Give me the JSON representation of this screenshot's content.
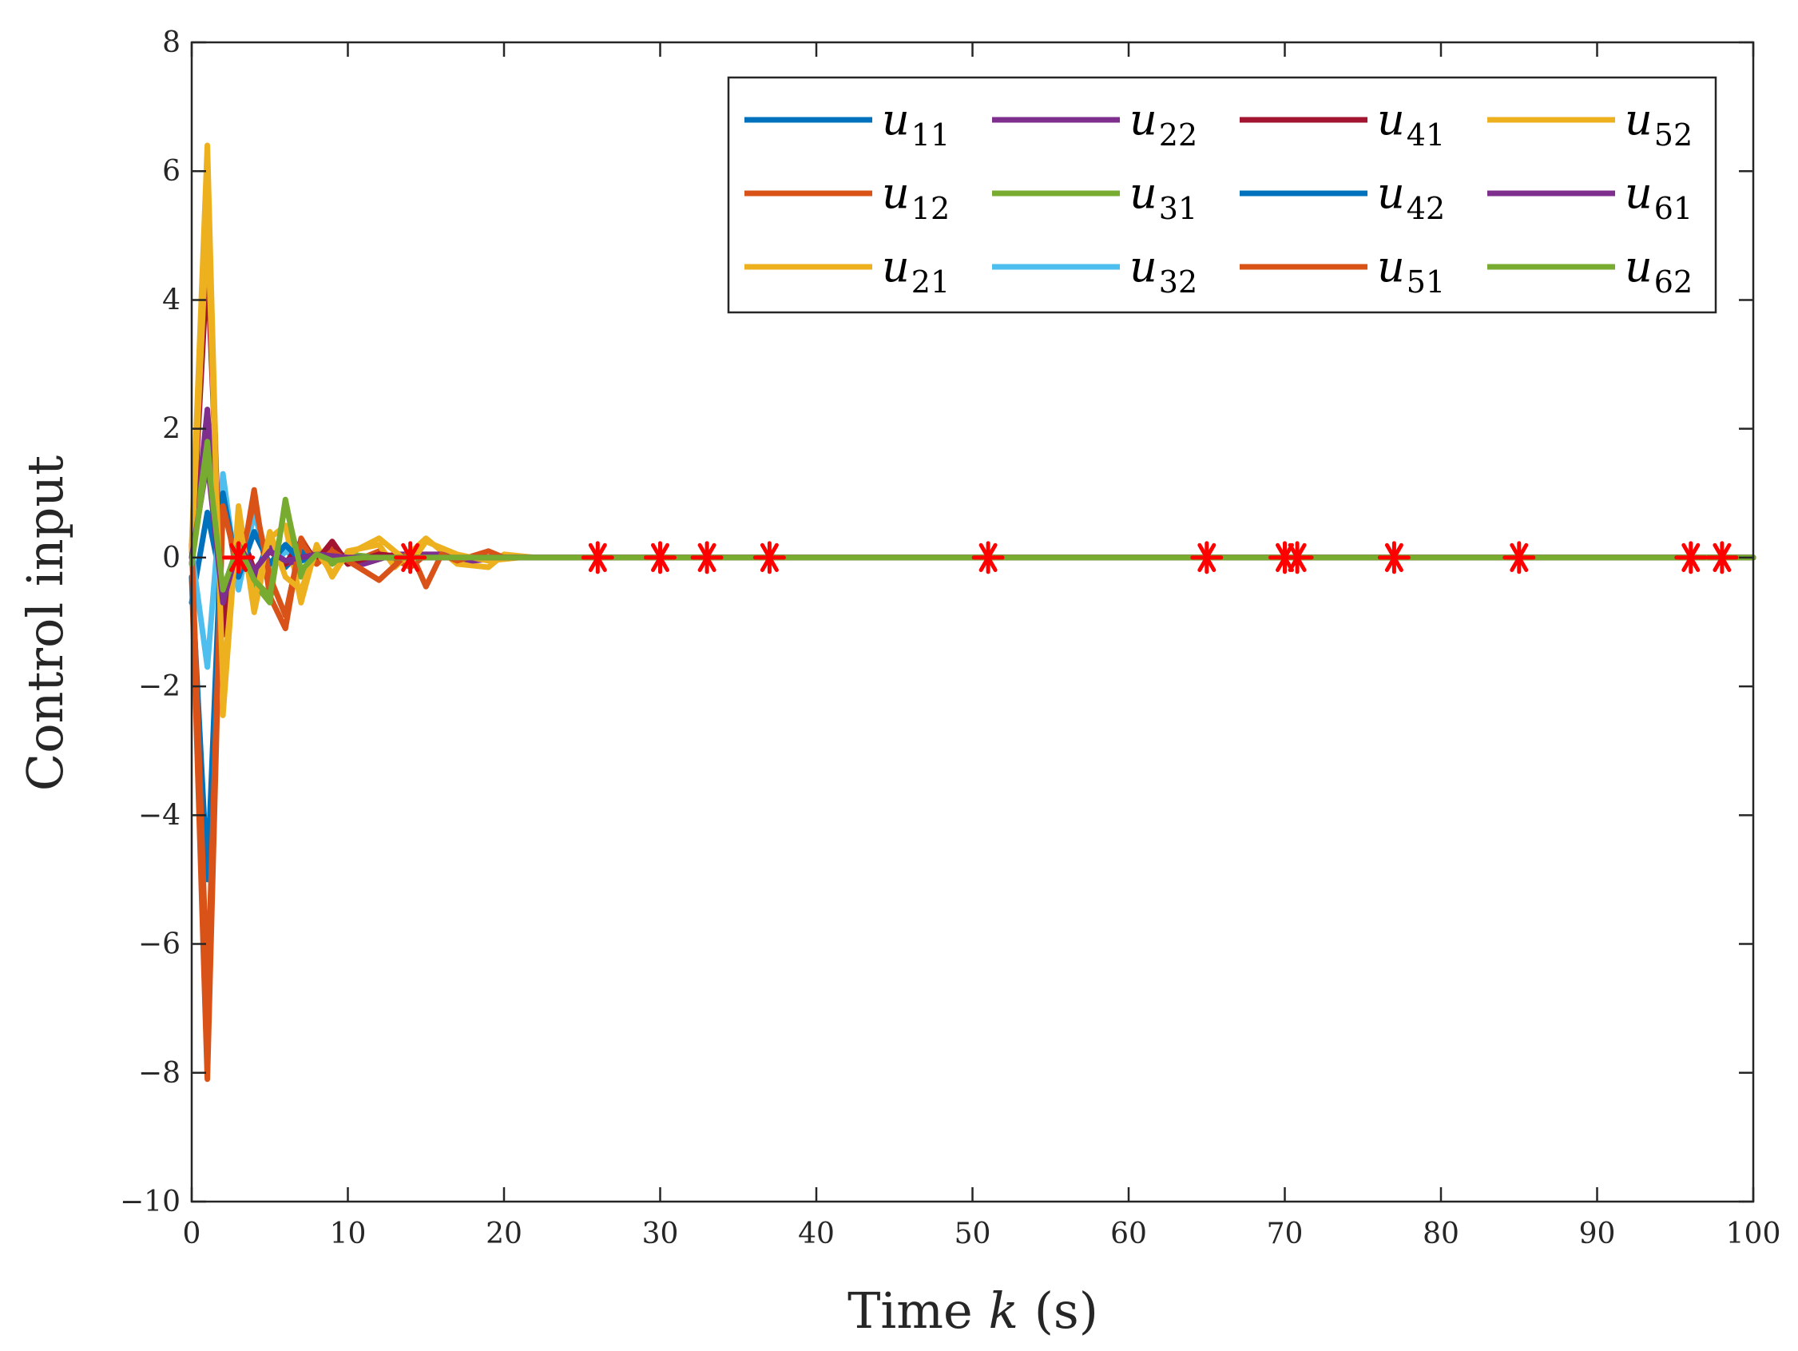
{
  "chart_data": {
    "type": "line",
    "xlabel": "Time k (s)",
    "xlabel_parts": {
      "prefix": "Time ",
      "var": "k",
      "suffix": " (s)"
    },
    "ylabel": "Control input",
    "xlim": [
      0,
      100
    ],
    "ylim": [
      -10,
      8
    ],
    "xticks": [
      0,
      10,
      20,
      30,
      40,
      50,
      60,
      70,
      80,
      90,
      100
    ],
    "yticks": [
      -10,
      -8,
      -6,
      -4,
      -2,
      0,
      2,
      4,
      6,
      8
    ],
    "legend_position": "top-right",
    "grid": false,
    "series": [
      {
        "name": "u11",
        "base": "u",
        "sub": "11",
        "color": "#0072BD",
        "points": [
          [
            0,
            -0.7
          ],
          [
            1,
            0.7
          ],
          [
            2,
            -0.5
          ],
          [
            3,
            0.2
          ],
          [
            4,
            -0.3
          ],
          [
            5,
            0.25
          ],
          [
            6,
            -0.15
          ],
          [
            7,
            0.1
          ],
          [
            8,
            -0.05
          ],
          [
            9,
            0.05
          ],
          [
            10,
            0
          ],
          [
            100,
            0
          ]
        ]
      },
      {
        "name": "u12",
        "base": "u",
        "sub": "12",
        "color": "#D95319",
        "points": [
          [
            0,
            -0.3
          ],
          [
            1,
            -8.1
          ],
          [
            2,
            1.0
          ],
          [
            3,
            -0.4
          ],
          [
            4,
            1.05
          ],
          [
            5,
            -0.6
          ],
          [
            6,
            -1.1
          ],
          [
            7,
            0.3
          ],
          [
            8,
            -0.1
          ],
          [
            9,
            0.2
          ],
          [
            10,
            -0.1
          ],
          [
            12,
            0.1
          ],
          [
            14,
            -0.15
          ],
          [
            15,
            0.05
          ],
          [
            18,
            0
          ],
          [
            100,
            0
          ]
        ]
      },
      {
        "name": "u21",
        "base": "u",
        "sub": "21",
        "color": "#EDB120",
        "points": [
          [
            0,
            0.2
          ],
          [
            1,
            6.4
          ],
          [
            2,
            -2.45
          ],
          [
            3,
            0.8
          ],
          [
            4,
            -0.85
          ],
          [
            5,
            0.3
          ],
          [
            6,
            0.5
          ],
          [
            7,
            -0.7
          ],
          [
            8,
            0.2
          ],
          [
            9,
            -0.3
          ],
          [
            10,
            0.1
          ],
          [
            12,
            0.2
          ],
          [
            13,
            -0.15
          ],
          [
            15,
            0.3
          ],
          [
            17,
            -0.1
          ],
          [
            19,
            -0.15
          ],
          [
            20,
            0.05
          ],
          [
            22,
            0
          ],
          [
            100,
            0
          ]
        ]
      },
      {
        "name": "u22",
        "base": "u",
        "sub": "22",
        "color": "#7E2F8E",
        "points": [
          [
            0,
            -0.1
          ],
          [
            1,
            2.3
          ],
          [
            2,
            -1.0
          ],
          [
            3,
            0.3
          ],
          [
            4,
            -0.35
          ],
          [
            5,
            0.15
          ],
          [
            6,
            -0.1
          ],
          [
            9,
            0.1
          ],
          [
            11,
            -0.1
          ],
          [
            13,
            0.05
          ],
          [
            16,
            0.05
          ],
          [
            18,
            -0.05
          ],
          [
            20,
            0
          ],
          [
            100,
            0
          ]
        ]
      },
      {
        "name": "u31",
        "base": "u",
        "sub": "31",
        "color": "#77AC30",
        "points": [
          [
            0,
            0
          ],
          [
            1,
            1.8
          ],
          [
            2,
            -0.8
          ],
          [
            3,
            0.3
          ],
          [
            4,
            -0.4
          ],
          [
            5,
            -0.7
          ],
          [
            6,
            0.9
          ],
          [
            7,
            -0.3
          ],
          [
            8,
            0.1
          ],
          [
            9,
            -0.1
          ],
          [
            10,
            0.05
          ],
          [
            12,
            0
          ],
          [
            100,
            0
          ]
        ]
      },
      {
        "name": "u32",
        "base": "u",
        "sub": "32",
        "color": "#4DBEEE",
        "points": [
          [
            0,
            0.1
          ],
          [
            1,
            -1.7
          ],
          [
            2,
            1.3
          ],
          [
            3,
            -0.5
          ],
          [
            4,
            0.7
          ],
          [
            5,
            -0.2
          ],
          [
            6,
            0.1
          ],
          [
            7,
            -0.05
          ],
          [
            9,
            0
          ],
          [
            100,
            0
          ]
        ]
      },
      {
        "name": "u41",
        "base": "u",
        "sub": "41",
        "color": "#A2142F",
        "points": [
          [
            0,
            0.1
          ],
          [
            1,
            4.6
          ],
          [
            2,
            -1.2
          ],
          [
            3,
            0.5
          ],
          [
            4,
            -0.2
          ],
          [
            5,
            0.1
          ],
          [
            6,
            -0.1
          ],
          [
            7,
            0.25
          ],
          [
            8,
            -0.05
          ],
          [
            9,
            0.25
          ],
          [
            10,
            -0.1
          ],
          [
            12,
            0.05
          ],
          [
            14,
            0
          ],
          [
            100,
            0
          ]
        ]
      },
      {
        "name": "u42",
        "base": "u",
        "sub": "42",
        "color": "#0072BD",
        "points": [
          [
            0,
            -0.3
          ],
          [
            1,
            -5.0
          ],
          [
            2,
            1.0
          ],
          [
            3,
            -0.3
          ],
          [
            4,
            0.4
          ],
          [
            5,
            -0.1
          ],
          [
            6,
            0.2
          ],
          [
            7,
            -0.05
          ],
          [
            8,
            0.05
          ],
          [
            10,
            0
          ],
          [
            100,
            0
          ]
        ]
      },
      {
        "name": "u51",
        "base": "u",
        "sub": "51",
        "color": "#D95319",
        "points": [
          [
            0,
            0.2
          ],
          [
            1,
            -6.8
          ],
          [
            2,
            0.8
          ],
          [
            3,
            -0.2
          ],
          [
            4,
            0.9
          ],
          [
            5,
            -0.3
          ],
          [
            6,
            -0.9
          ],
          [
            7,
            0.25
          ],
          [
            8,
            -0.1
          ],
          [
            9,
            0.1
          ],
          [
            10,
            -0.05
          ],
          [
            12,
            -0.35
          ],
          [
            14,
            0.1
          ],
          [
            15,
            -0.45
          ],
          [
            16,
            0.05
          ],
          [
            17,
            -0.05
          ],
          [
            19,
            0.1
          ],
          [
            20,
            0
          ],
          [
            100,
            0
          ]
        ]
      },
      {
        "name": "u52",
        "base": "u",
        "sub": "52",
        "color": "#EDB120",
        "points": [
          [
            0,
            0.1
          ],
          [
            1,
            5.3
          ],
          [
            2,
            -2.0
          ],
          [
            3,
            0.6
          ],
          [
            4,
            -0.7
          ],
          [
            5,
            0.4
          ],
          [
            6,
            -0.3
          ],
          [
            7,
            -0.5
          ],
          [
            8,
            0.1
          ],
          [
            9,
            -0.25
          ],
          [
            10,
            0.05
          ],
          [
            12,
            0.3
          ],
          [
            14,
            -0.1
          ],
          [
            15,
            0.25
          ],
          [
            17,
            0.05
          ],
          [
            19,
            -0.05
          ],
          [
            21,
            0
          ],
          [
            100,
            0
          ]
        ]
      },
      {
        "name": "u61",
        "base": "u",
        "sub": "61",
        "color": "#7E2F8E",
        "points": [
          [
            0,
            0
          ],
          [
            1,
            1.5
          ],
          [
            2,
            -0.7
          ],
          [
            3,
            0.2
          ],
          [
            4,
            -0.2
          ],
          [
            5,
            0.1
          ],
          [
            6,
            -0.05
          ],
          [
            8,
            0.05
          ],
          [
            10,
            0
          ],
          [
            100,
            0
          ]
        ]
      },
      {
        "name": "u62",
        "base": "u",
        "sub": "62",
        "color": "#77AC30",
        "points": [
          [
            0,
            -0.1
          ],
          [
            1,
            1.6
          ],
          [
            2,
            -0.5
          ],
          [
            3,
            0.2
          ],
          [
            4,
            -0.35
          ],
          [
            5,
            -0.6
          ],
          [
            6,
            0.85
          ],
          [
            7,
            -0.2
          ],
          [
            8,
            0.05
          ],
          [
            9,
            -0.05
          ],
          [
            11,
            0
          ],
          [
            100,
            0
          ]
        ]
      }
    ],
    "event_markers": {
      "symbol": "asterisk",
      "color": "#FF0000",
      "y": 0,
      "x": [
        3,
        14,
        26,
        30,
        33,
        37,
        51,
        65,
        70,
        70.8,
        77,
        85,
        96,
        98
      ]
    }
  }
}
